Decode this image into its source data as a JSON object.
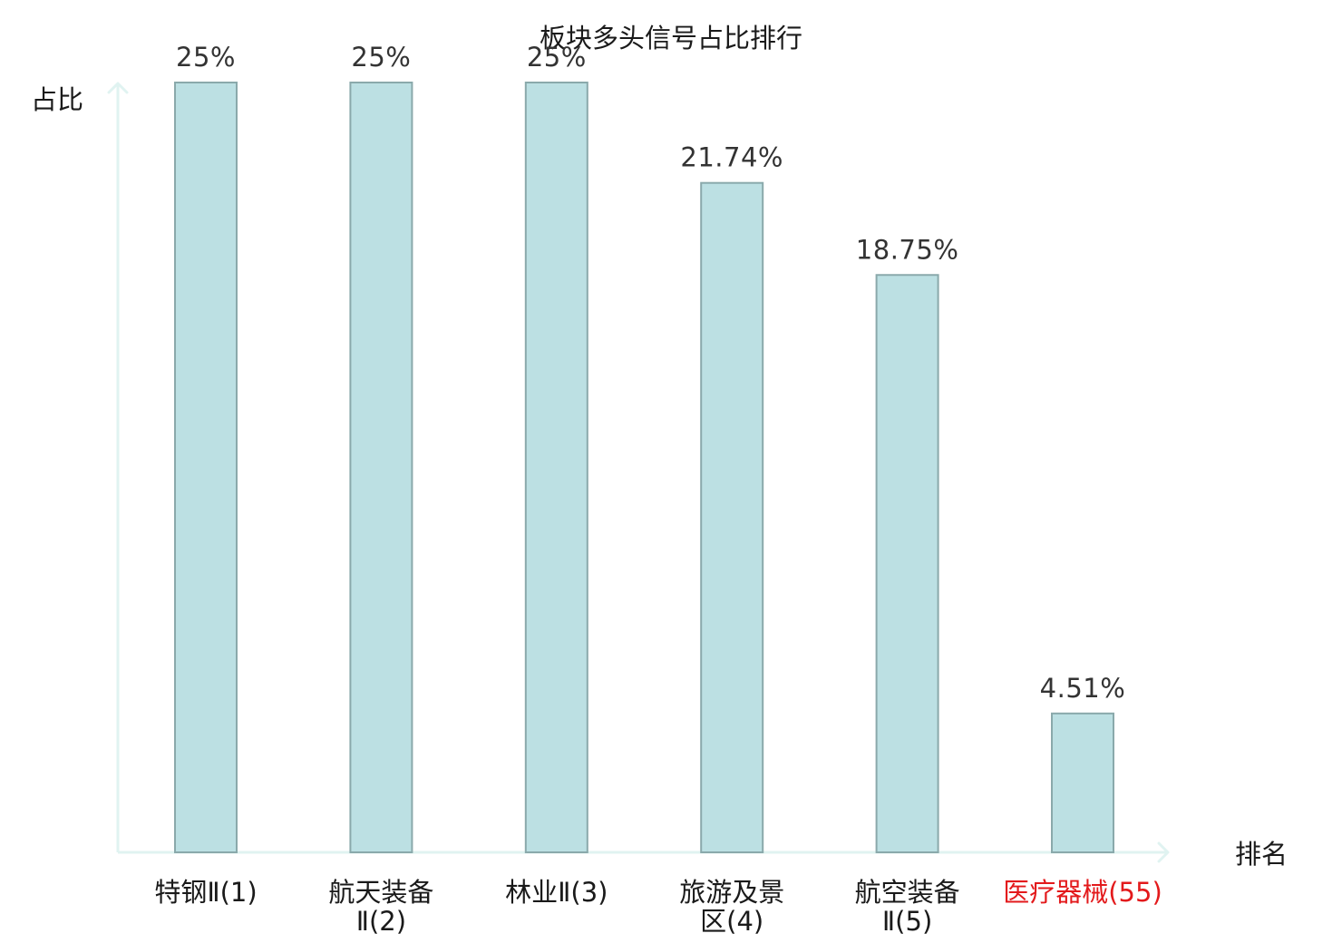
{
  "chart_data": {
    "type": "bar",
    "title": "板块多头信号占比排行",
    "xlabel": "排名",
    "ylabel": "占比",
    "categories": [
      [
        "特钢Ⅱ(1)"
      ],
      [
        "航天装备",
        "Ⅱ(2)"
      ],
      [
        "林业Ⅱ(3)"
      ],
      [
        "旅游及景",
        "区(4)"
      ],
      [
        "航空装备",
        "Ⅱ(5)"
      ],
      [
        "医疗器械(55)"
      ]
    ],
    "values": [
      25,
      25,
      25,
      21.74,
      18.75,
      4.51
    ],
    "value_labels": [
      "25%",
      "25%",
      "25%",
      "21.74%",
      "18.75%",
      "4.51%"
    ],
    "highlight_index": 5,
    "ylim": [
      0,
      25
    ],
    "grid": false,
    "colors": {
      "bar_fill": "#bce0e3",
      "bar_stroke": "#8aa9ab",
      "axis": "#e0f3f1",
      "label_default": "#1a1a1a",
      "label_highlight": "#e31a1c"
    }
  }
}
